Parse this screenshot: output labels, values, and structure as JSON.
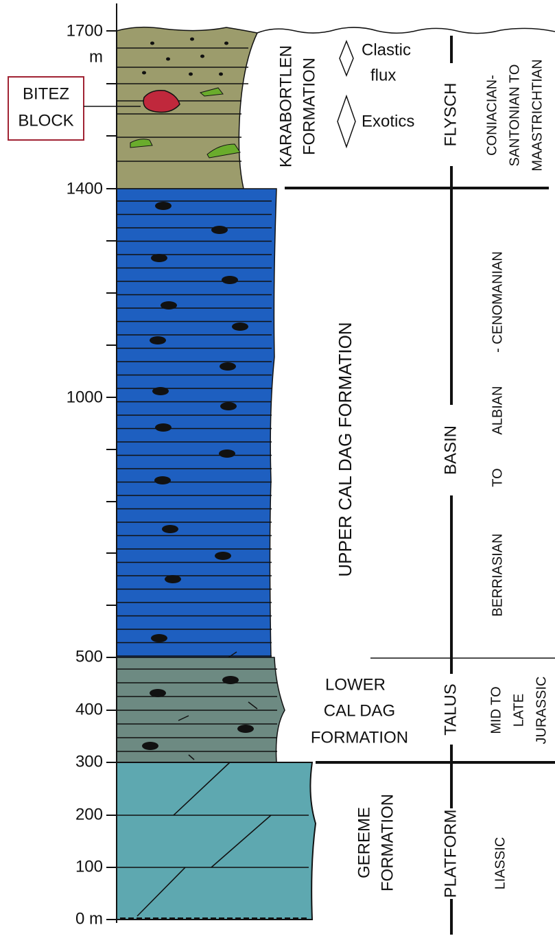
{
  "axis_labels": [
    "1700",
    "m",
    "1400",
    "1000",
    "500",
    "400",
    "300",
    "200",
    "100",
    "0 m"
  ],
  "callout": [
    "BITEZ",
    "BLOCK"
  ],
  "legend": {
    "clastic": [
      "Clastic",
      "flux"
    ],
    "exotics": "Exotics"
  },
  "formations": {
    "karabortlen": [
      "KARABORTLEN",
      "FORMATION"
    ],
    "upper": "UPPER CAL DAG FORMATION",
    "lower": [
      "LOWER",
      "CAL DAG",
      "FORMATION"
    ],
    "gereme": [
      "GEREME",
      "FORMATION"
    ]
  },
  "environments": [
    "FLYSCH",
    "BASIN",
    "TALUS",
    "PLATFORM"
  ],
  "ages": {
    "flysch": [
      "CONIACIAN-",
      "SANTONIAN TO",
      "MAASTRICHTIAN"
    ],
    "basin": [
      "BERRIASIAN",
      "TO",
      "ALBIAN",
      "- CENOMANIAN"
    ],
    "talus": [
      "MID TO",
      "LATE",
      "JURASSIC"
    ],
    "platform": "LIASSIC"
  }
}
